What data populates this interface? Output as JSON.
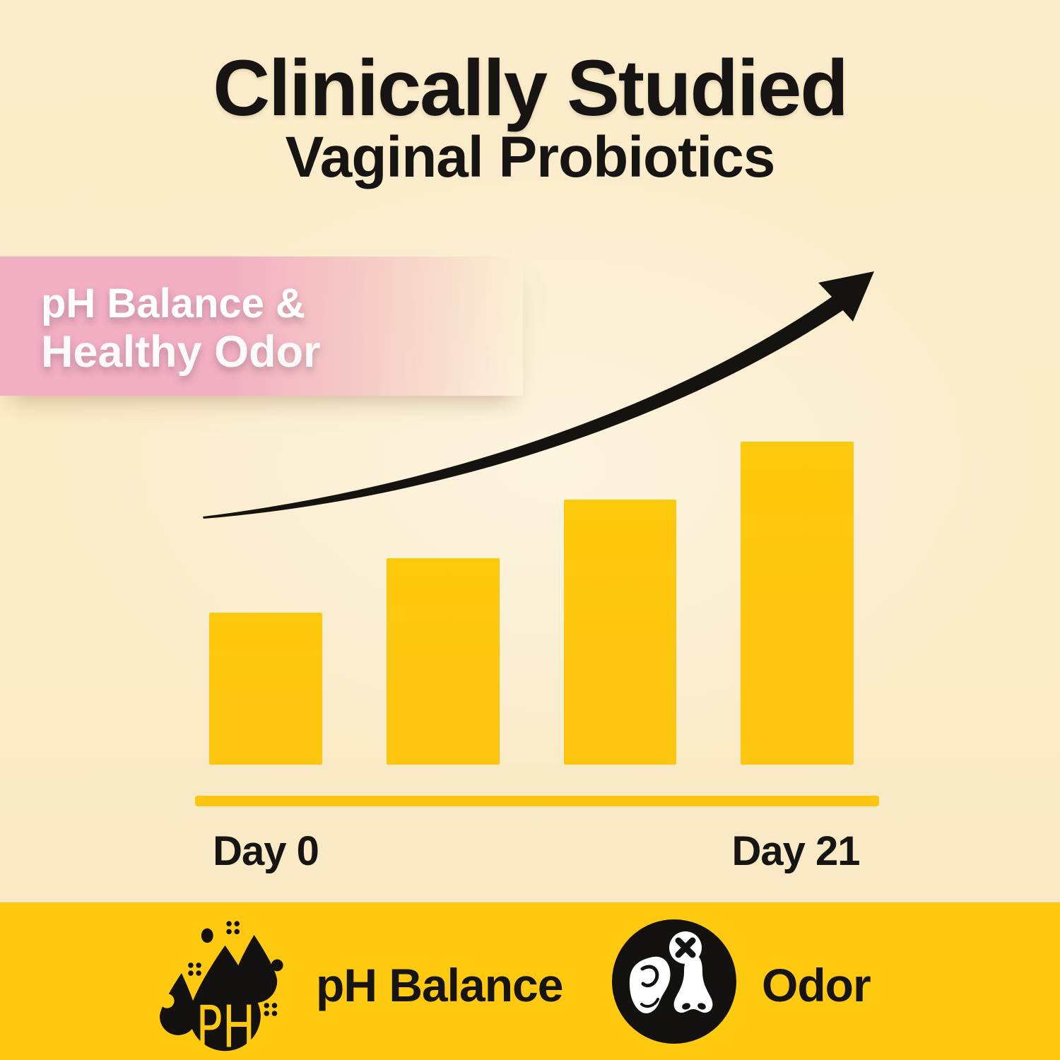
{
  "header": {
    "title": "Clinically Studied",
    "subtitle": "Vaginal Probiotics"
  },
  "banner": {
    "line1": "pH Balance &",
    "line2": "Healthy Odor"
  },
  "chart_data": {
    "type": "bar",
    "categories": [
      "Day 0",
      "",
      "",
      "Day 21"
    ],
    "values": [
      47,
      64,
      82,
      100
    ],
    "value_unit": "relative bar height, % of tallest bar (no numeric axis shown)",
    "x_labels": [
      "Day 0",
      "Day 21"
    ],
    "title": "",
    "xlabel": "",
    "ylabel": "",
    "grid": false,
    "legend": false,
    "bar_color": "#FCC50F",
    "baseline_color": "#FCC50F",
    "annotations": [
      "black upward curved trend arrow above bars"
    ]
  },
  "footer": {
    "items": [
      {
        "icon": "ph-droplets-icon",
        "label": "pH Balance"
      },
      {
        "icon": "odor-ear-nose-icon",
        "label": "Odor"
      }
    ]
  },
  "colors": {
    "background_cream": "#FBEDCB",
    "bar_yellow": "#FCC50F",
    "footer_yellow": "#FEC90F",
    "banner_pink": "#F2AEC3",
    "text_black": "#171513",
    "white": "#FFFFFF"
  }
}
